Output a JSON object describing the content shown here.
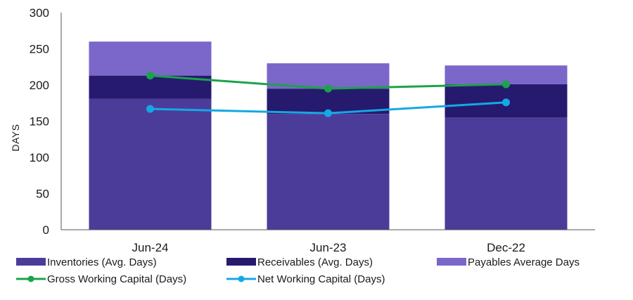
{
  "chart_data": {
    "type": "bar",
    "stacked": true,
    "categories": [
      "Jun-24",
      "Jun-23",
      "Dec-22"
    ],
    "ylabel": "DAYS",
    "xlabel": "",
    "ylim": [
      0,
      300
    ],
    "yticks": [
      "0",
      "50",
      "100",
      "150",
      "200",
      "250",
      "300"
    ],
    "grid": false,
    "legend_position": "bottom",
    "bar_series": [
      {
        "name": "Inventories (Avg. Days)",
        "color": "#4b3c9a",
        "values": [
          181,
          160,
          155
        ]
      },
      {
        "name": "Receivables (Avg. Days)",
        "color": "#261a6e",
        "values": [
          32,
          35,
          46
        ]
      },
      {
        "name": "Payables Average Days",
        "color": "#7b66c9",
        "values": [
          47,
          35,
          26
        ]
      }
    ],
    "line_series": [
      {
        "name": "Gross Working Capital (Days)",
        "color": "#1aa34a",
        "values": [
          213,
          195,
          201
        ]
      },
      {
        "name": "Net Working Capital (Days)",
        "color": "#14a9e3",
        "values": [
          167,
          161,
          176
        ]
      }
    ]
  }
}
